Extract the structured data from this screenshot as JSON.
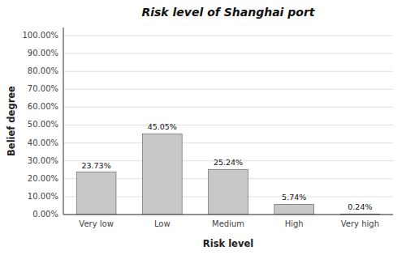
{
  "chart_data": {
    "type": "bar",
    "title": "Risk level of Shanghai port",
    "categories": [
      "Very low",
      "Low",
      "Medium",
      "High",
      "Very high"
    ],
    "values": [
      23.73,
      45.05,
      25.24,
      5.74,
      0.24
    ],
    "value_labels": [
      "23.73%",
      "45.05%",
      "25.24%",
      "5.74%",
      "0.24%"
    ],
    "data_labels": true,
    "color": "#c8c8c8",
    "xlabel": "Risk level",
    "ylabel": "Belief degree",
    "ylim": [
      0,
      104.5
    ],
    "yticks": [
      {
        "value": 0,
        "label": "0.00%"
      },
      {
        "value": 10,
        "label": "10.00%"
      },
      {
        "value": 20,
        "label": "20.00%"
      },
      {
        "value": 30,
        "label": "30.00%"
      },
      {
        "value": 40,
        "label": "40.00%"
      },
      {
        "value": 50,
        "label": "50.00%"
      },
      {
        "value": 60,
        "label": "60.00%"
      },
      {
        "value": 70,
        "label": "70.00%"
      },
      {
        "value": 80,
        "label": "80.00%"
      },
      {
        "value": 90,
        "label": "90.00%"
      },
      {
        "value": 100,
        "label": "100.00%"
      }
    ],
    "grid": true
  }
}
